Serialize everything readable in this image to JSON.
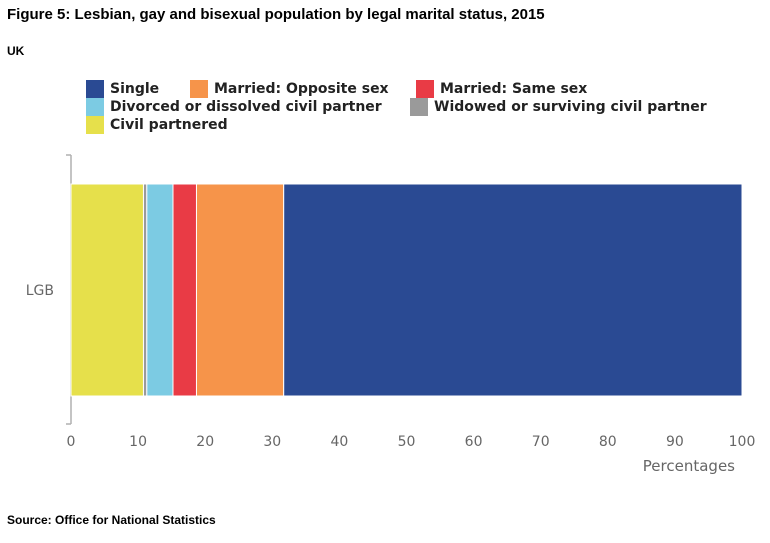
{
  "figure": {
    "title": "Figure 5: Lesbian, gay and bisexual population by legal marital status, 2015",
    "subtitle": "UK",
    "source": "Source: Office for National Statistics"
  },
  "chart_data": {
    "type": "bar",
    "orientation": "horizontal",
    "stacked": true,
    "categories": [
      "LGB"
    ],
    "xlabel": "Percentages",
    "ylabel": "",
    "xlim": [
      0,
      100
    ],
    "xticks": [
      0,
      10,
      20,
      30,
      40,
      50,
      60,
      70,
      80,
      90,
      100
    ],
    "grid": false,
    "legend_position": "top",
    "series": [
      {
        "name": "Civil partnered",
        "values": [
          10.8
        ],
        "color": "#e6e04b"
      },
      {
        "name": "Widowed or surviving civil partner",
        "values": [
          0.5
        ],
        "color": "#9a9a9a"
      },
      {
        "name": "Divorced or dissolved civil partner",
        "values": [
          3.9
        ],
        "color": "#7ccbe3"
      },
      {
        "name": "Married: Same sex",
        "values": [
          3.5
        ],
        "color": "#e93b45"
      },
      {
        "name": "Married: Opposite sex",
        "values": [
          13.0
        ],
        "color": "#f6944a"
      },
      {
        "name": "Single",
        "values": [
          68.3
        ],
        "color": "#2a4a93"
      }
    ],
    "legend": [
      "Single",
      "Married: Opposite sex",
      "Married: Same sex",
      "Divorced or dissolved civil partner",
      "Widowed or surviving civil partner",
      "Civil partnered"
    ]
  }
}
